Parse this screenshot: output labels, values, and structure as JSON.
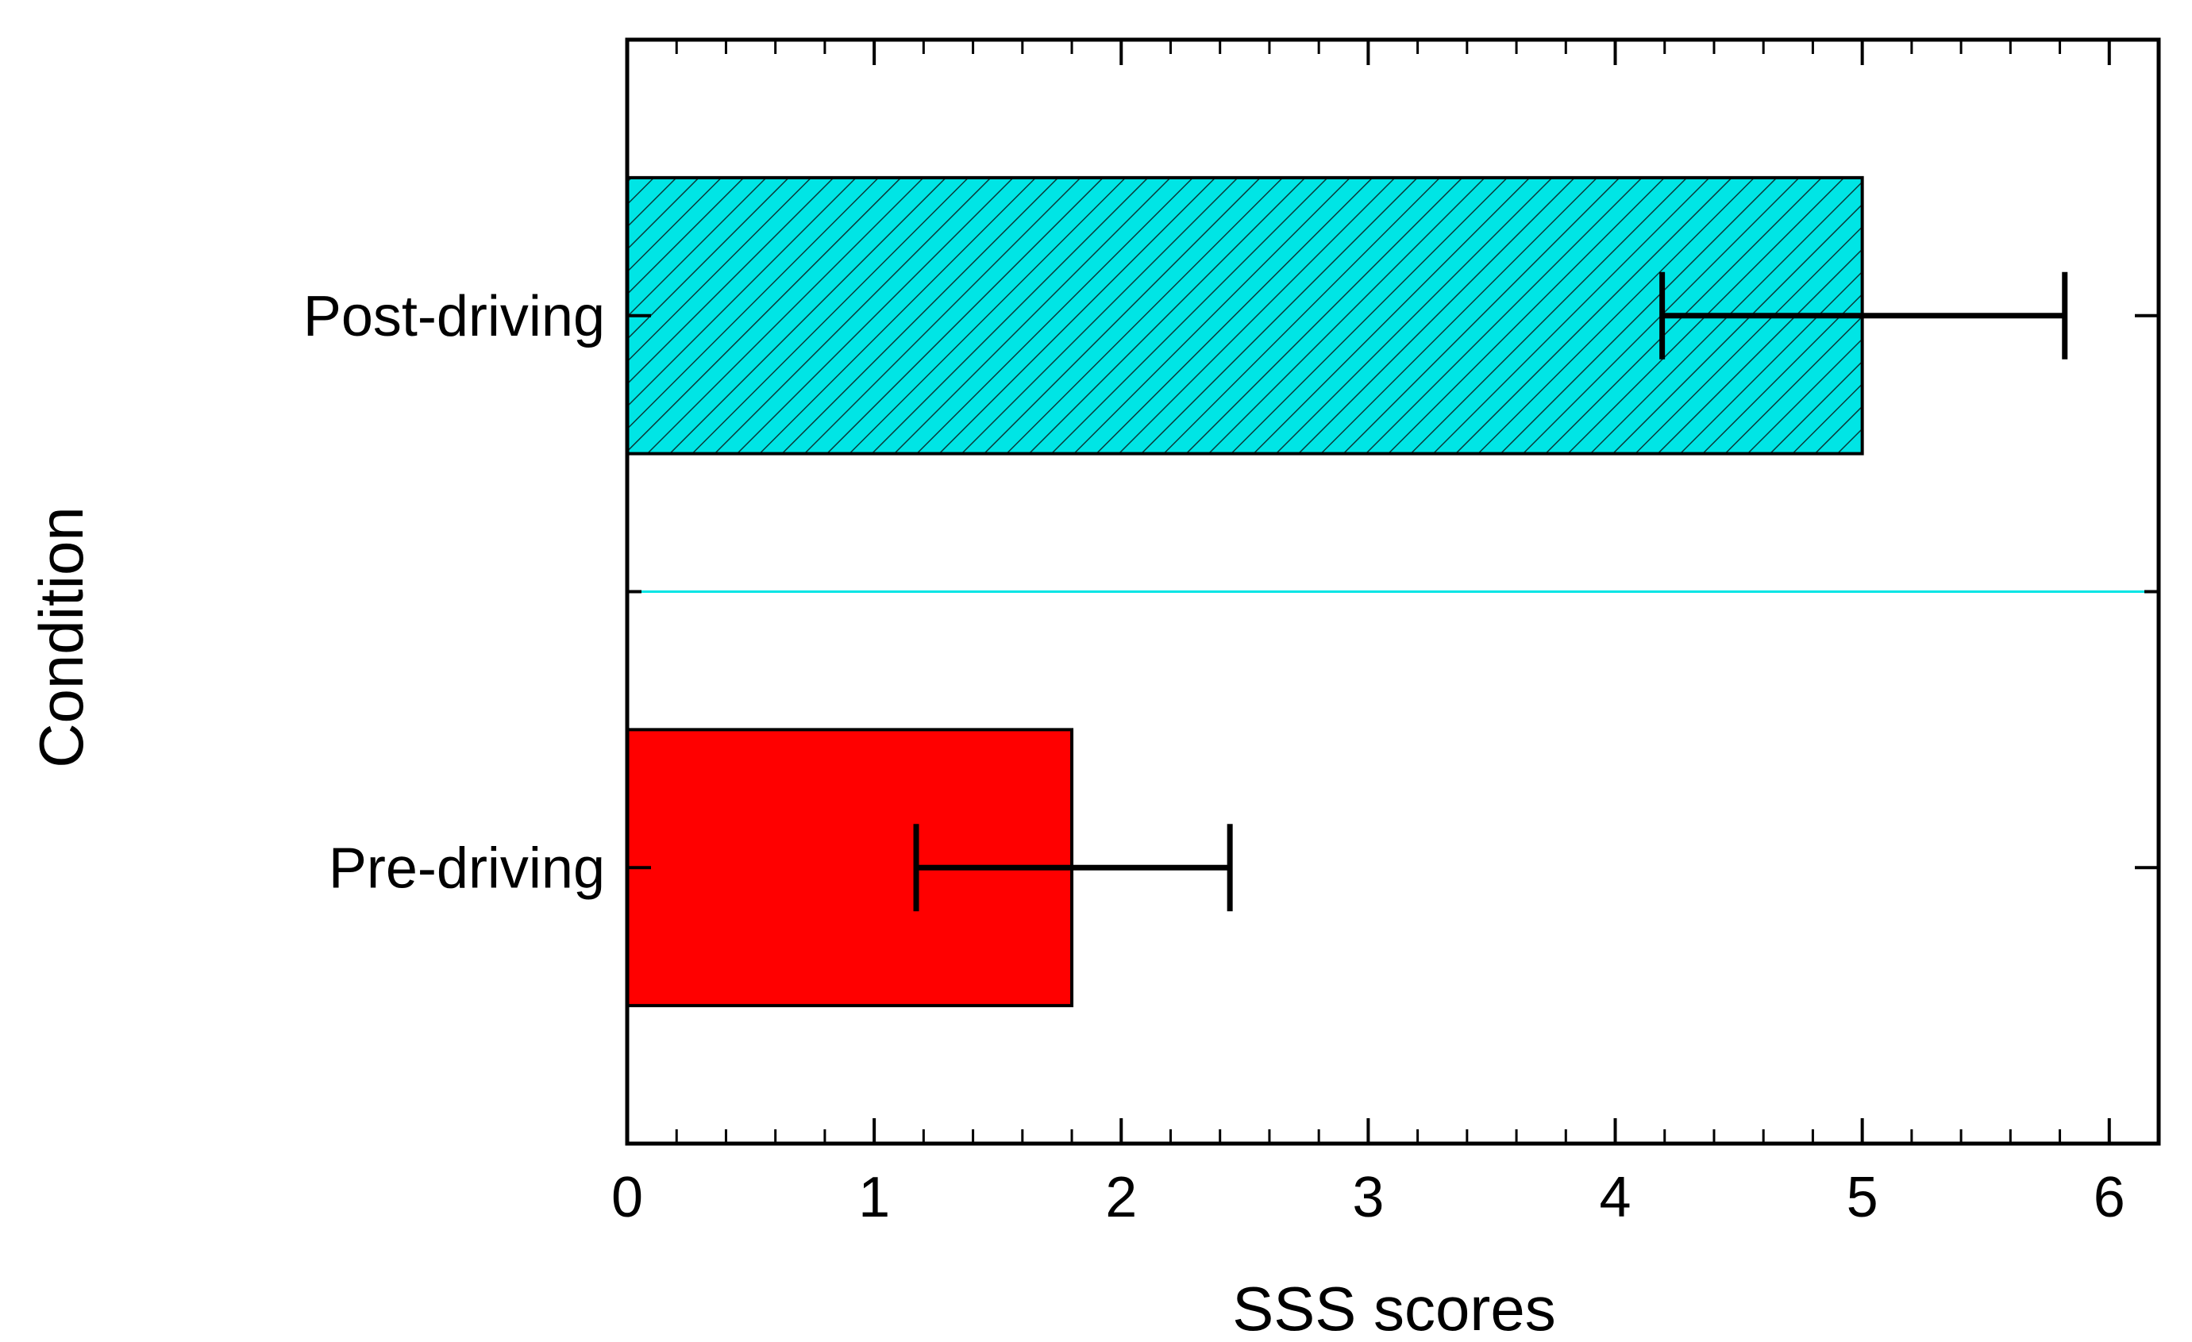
{
  "chart_data": {
    "type": "bar",
    "orientation": "horizontal",
    "title": "",
    "xlabel": "SSS scores",
    "ylabel": "Condition",
    "xlim": [
      0,
      6.2
    ],
    "xticks": [
      0,
      1,
      2,
      3,
      4,
      5,
      6
    ],
    "xticks_labels": [
      "0",
      "1",
      "2",
      "3",
      "4",
      "5",
      "6"
    ],
    "categories": [
      "Post-driving",
      "Pre-driving"
    ],
    "values": [
      5.0,
      1.8
    ],
    "error_low": [
      4.19,
      1.17
    ],
    "error_high": [
      5.82,
      2.44
    ],
    "colors": [
      "#00e5e5",
      "#ff0000"
    ],
    "hatch": [
      true,
      false
    ],
    "grid": false,
    "separator_color": "#00e5e5"
  }
}
